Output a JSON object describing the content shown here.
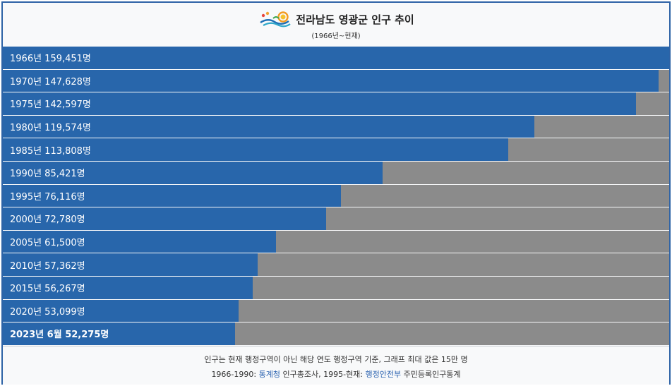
{
  "header": {
    "title": "전라남도 영광군 인구 추이",
    "subtitle": "(1966년~현재)"
  },
  "chart_data": {
    "type": "bar",
    "orientation": "horizontal",
    "max_value": 150000,
    "bars": [
      {
        "label": "1966년 159,451명",
        "year": "1966년",
        "value": 159451,
        "bold": false
      },
      {
        "label": "1970년 147,628명",
        "year": "1970년",
        "value": 147628,
        "bold": false
      },
      {
        "label": "1975년 142,597명",
        "year": "1975년",
        "value": 142597,
        "bold": false
      },
      {
        "label": "1980년 119,574명",
        "year": "1980년",
        "value": 119574,
        "bold": false
      },
      {
        "label": "1985년 113,808명",
        "year": "1985년",
        "value": 113808,
        "bold": false
      },
      {
        "label": "1990년 85,421명",
        "year": "1990년",
        "value": 85421,
        "bold": false
      },
      {
        "label": "1995년 76,116명",
        "year": "1995년",
        "value": 76116,
        "bold": false
      },
      {
        "label": "2000년 72,780명",
        "year": "2000년",
        "value": 72780,
        "bold": false
      },
      {
        "label": "2005년 61,500명",
        "year": "2005년",
        "value": 61500,
        "bold": false
      },
      {
        "label": "2010년 57,362명",
        "year": "2010년",
        "value": 57362,
        "bold": false
      },
      {
        "label": "2015년 56,267명",
        "year": "2015년",
        "value": 56267,
        "bold": false
      },
      {
        "label": "2020년 53,099명",
        "year": "2020년",
        "value": 53099,
        "bold": false
      },
      {
        "label": "2023년 6월 52,275명",
        "year": "2023년 6월",
        "value": 52275,
        "bold": true
      }
    ],
    "colors": {
      "bar": "#2866ab",
      "track": "#8b8b8b"
    }
  },
  "footer": {
    "note": "인구는 현재 행정구역이 아닌 해당 연도 행정구역 기준, 그래프 최대 값은 15만 명",
    "source_prefix": "1966-1990: ",
    "source_link1": "통계청",
    "source_mid": " 인구총조사, 1995-현재: ",
    "source_link2": "행정안전부",
    "source_suffix": " 주민등록인구통계"
  },
  "icons": {
    "logo": "yeonggwang-county-logo"
  }
}
